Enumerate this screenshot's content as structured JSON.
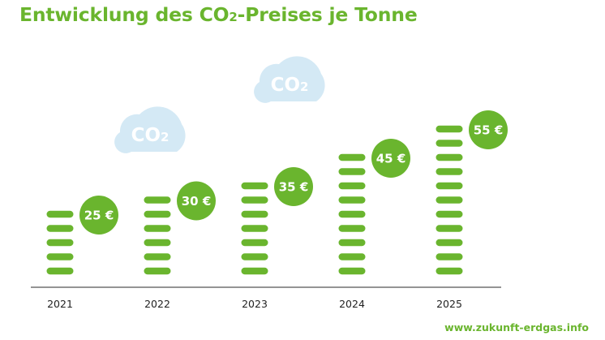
{
  "header": {
    "title_start": "Entwicklung des CO",
    "title_sub": "2",
    "title_end": "-Preises je Tonne"
  },
  "clouds": [
    {
      "label": "CO",
      "sub": "2"
    },
    {
      "label": "CO",
      "sub": "2"
    }
  ],
  "footer": {
    "url": "www.zukunft-erdgas.info"
  },
  "colors": {
    "accent": "#6ab52e",
    "cloud": "#d4e9f5",
    "axis": "#555555"
  },
  "chart_data": {
    "type": "bar",
    "categories": [
      "2021",
      "2022",
      "2023",
      "2024",
      "2025"
    ],
    "values": [
      25,
      30,
      35,
      45,
      55
    ],
    "data_labels": [
      "25 €",
      "30 €",
      "35 €",
      "45 €",
      "55 €"
    ],
    "title": "Entwicklung des CO2-Preises je Tonne",
    "xlabel": "",
    "ylabel": "",
    "ylim": [
      0,
      55
    ],
    "grid": false,
    "legend": "none"
  }
}
